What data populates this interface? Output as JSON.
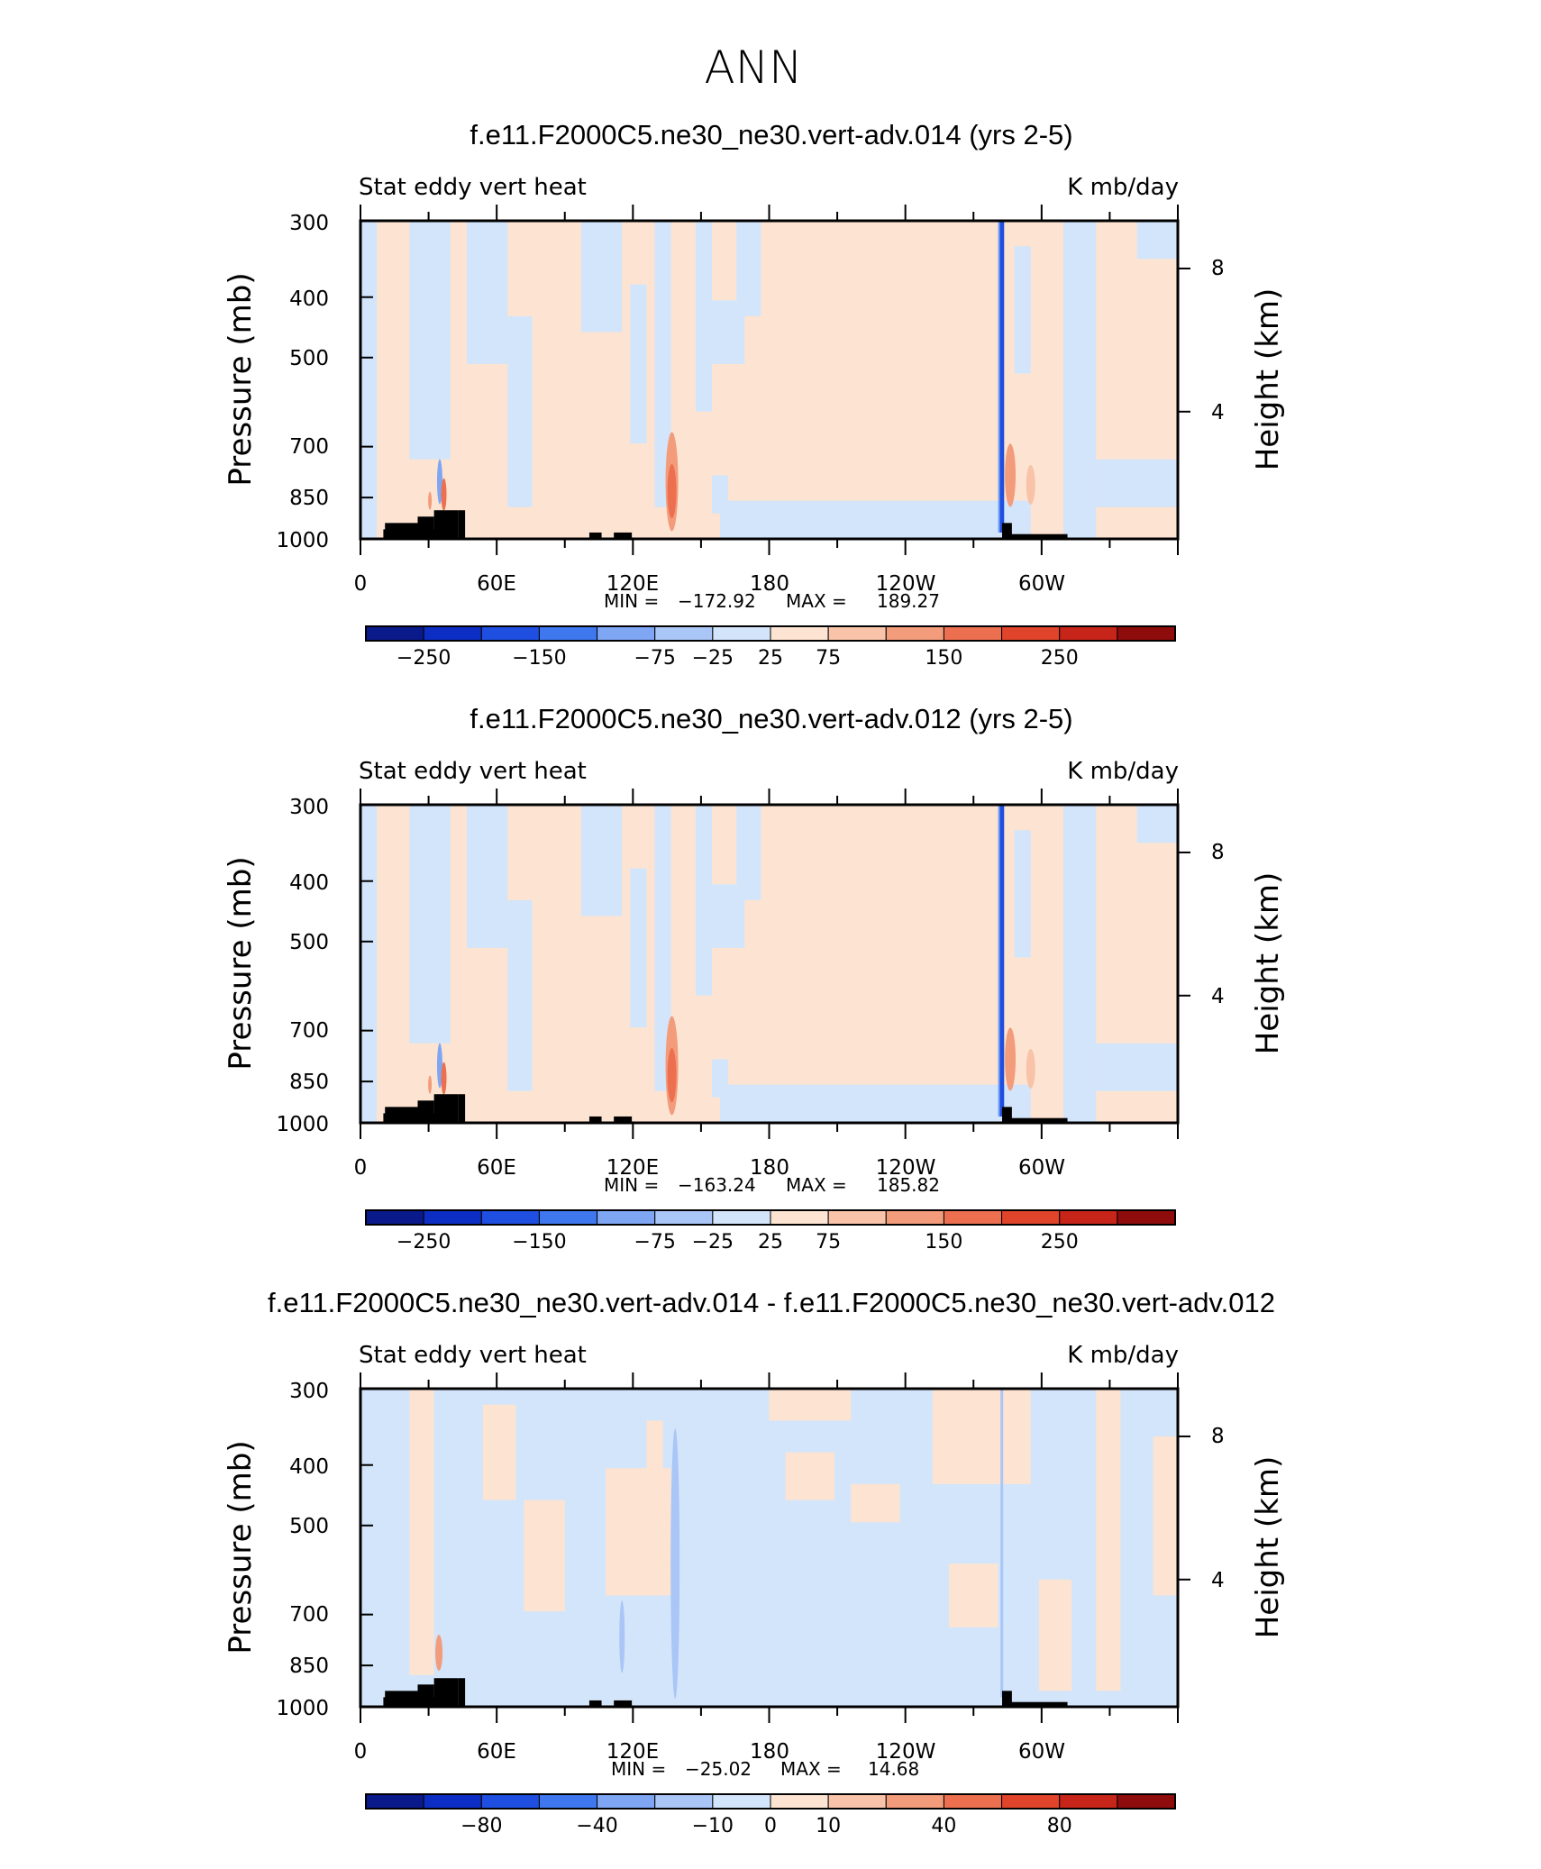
{
  "figure": {
    "title": "ANN"
  },
  "colors": {
    "blue": [
      "#0a1a8a",
      "#0d2ec4",
      "#1f4fe0",
      "#3f78ee",
      "#7ea6f3",
      "#aac6f6",
      "#d3e5fa"
    ],
    "red": [
      "#fde4d2",
      "#f9c3a9",
      "#f39c7c",
      "#ec7050",
      "#e0442b",
      "#c7241a",
      "#8e0c0c"
    ],
    "terrain": "#000000"
  },
  "chart_data": [
    {
      "type": "heatmap",
      "title": "f.e11.F2000C5.ne30_ne30.vert-adv.014 (yrs 2-5)",
      "subtitle_left": "Stat eddy vert heat",
      "subtitle_right": "K mb/day",
      "ylabel": "Pressure (mb)",
      "ylabel_right": "Height (km)",
      "yticks": [
        "300",
        "400",
        "500",
        "700",
        "850",
        "1000"
      ],
      "yticks_right": [
        "8",
        "4"
      ],
      "xticks": [
        "0",
        "60E",
        "120E",
        "180",
        "120W",
        "60W"
      ],
      "stats": {
        "min_label": "MIN =",
        "min": "−172.92",
        "max_label": "MAX =",
        "max": "189.27"
      },
      "colorbar_labels": [
        "−250",
        "−150",
        "−75",
        "−25",
        "25",
        "75",
        "150",
        "250"
      ],
      "field": "full"
    },
    {
      "type": "heatmap",
      "title": "f.e11.F2000C5.ne30_ne30.vert-adv.012 (yrs 2-5)",
      "subtitle_left": "Stat eddy vert heat",
      "subtitle_right": "K mb/day",
      "ylabel": "Pressure (mb)",
      "ylabel_right": "Height (km)",
      "yticks": [
        "300",
        "400",
        "500",
        "700",
        "850",
        "1000"
      ],
      "yticks_right": [
        "8",
        "4"
      ],
      "xticks": [
        "0",
        "60E",
        "120E",
        "180",
        "120W",
        "60W"
      ],
      "stats": {
        "min_label": "MIN =",
        "min": "−163.24",
        "max_label": "MAX =",
        "max": "185.82"
      },
      "colorbar_labels": [
        "−250",
        "−150",
        "−75",
        "−25",
        "25",
        "75",
        "150",
        "250"
      ],
      "field": "full"
    },
    {
      "type": "heatmap",
      "title": "f.e11.F2000C5.ne30_ne30.vert-adv.014 - f.e11.F2000C5.ne30_ne30.vert-adv.012",
      "subtitle_left": "Stat eddy vert heat",
      "subtitle_right": "K mb/day",
      "ylabel": "Pressure (mb)",
      "ylabel_right": "Height (km)",
      "yticks": [
        "300",
        "400",
        "500",
        "700",
        "850",
        "1000"
      ],
      "yticks_right": [
        "8",
        "4"
      ],
      "xticks": [
        "0",
        "60E",
        "120E",
        "180",
        "120W",
        "60W"
      ],
      "stats": {
        "min_label": "MIN =",
        "min": "−25.02",
        "max_label": "MAX =",
        "max": "14.68"
      },
      "colorbar_labels": [
        "−80",
        "−40",
        "−10",
        "0",
        "10",
        "40",
        "80"
      ],
      "field": "diff"
    }
  ]
}
